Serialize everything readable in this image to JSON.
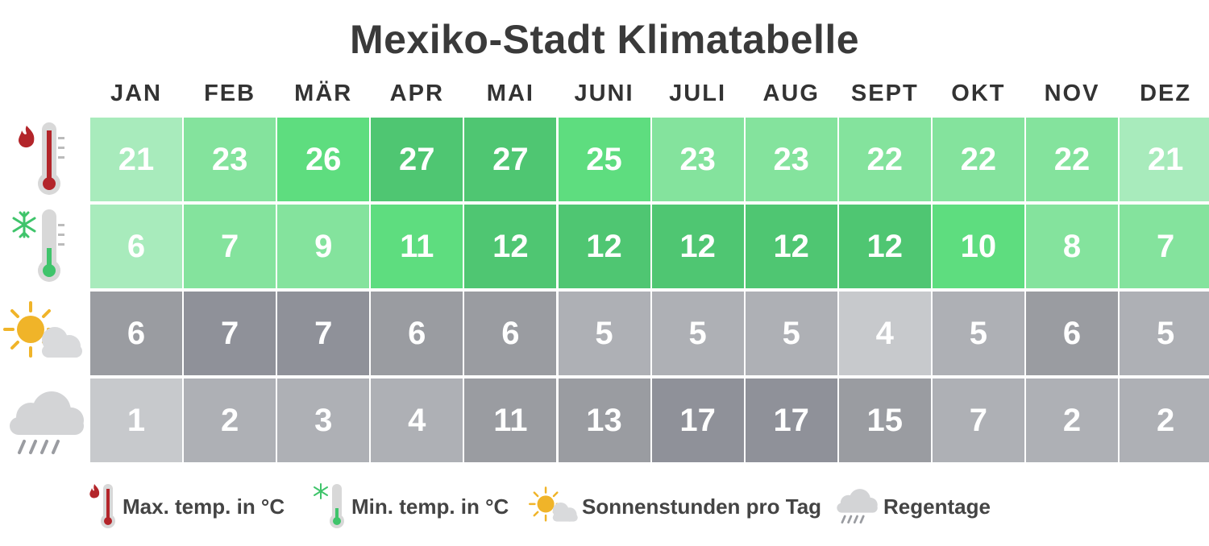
{
  "title": "Mexiko-Stadt Klimatabelle",
  "colors": {
    "green_levels": [
      "#a8ebbc",
      "#84e39d",
      "#5edd7f",
      "#4fc672"
    ],
    "gray_levels": [
      "#c7c9cc",
      "#aeb0b5",
      "#9a9ca1",
      "#8f9199"
    ]
  },
  "icons": [
    "max-temp-thermometer-icon",
    "min-temp-thermometer-icon",
    "sun-cloud-icon",
    "rain-cloud-icon"
  ],
  "chart_data": {
    "type": "table",
    "title": "Mexiko-Stadt Klimatabelle",
    "months": [
      "JAN",
      "FEB",
      "MÄR",
      "APR",
      "MAI",
      "JUNI",
      "JULI",
      "AUG",
      "SEPT",
      "OKT",
      "NOV",
      "DEZ"
    ],
    "rows": [
      {
        "name": "Max. temp. in °C",
        "values": [
          21,
          23,
          26,
          27,
          27,
          25,
          23,
          23,
          22,
          22,
          22,
          21
        ],
        "levels": [
          0,
          1,
          2,
          3,
          3,
          2,
          1,
          1,
          1,
          1,
          1,
          0
        ]
      },
      {
        "name": "Min. temp. in °C",
        "values": [
          6,
          7,
          9,
          11,
          12,
          12,
          12,
          12,
          12,
          10,
          8,
          7
        ],
        "levels": [
          0,
          1,
          1,
          2,
          3,
          3,
          3,
          3,
          3,
          2,
          1,
          1
        ]
      },
      {
        "name": "Sonnenstunden pro Tag",
        "values": [
          6,
          7,
          7,
          6,
          6,
          5,
          5,
          5,
          4,
          5,
          6,
          5
        ],
        "levels": [
          2,
          3,
          3,
          2,
          2,
          1,
          1,
          1,
          0,
          1,
          2,
          1
        ]
      },
      {
        "name": "Regentage",
        "values": [
          1,
          2,
          3,
          4,
          11,
          13,
          17,
          17,
          15,
          7,
          2,
          2
        ],
        "levels": [
          0,
          1,
          1,
          1,
          2,
          2,
          3,
          3,
          2,
          1,
          1,
          1
        ]
      }
    ]
  },
  "legend": [
    {
      "label": "Max. temp. in °C",
      "icon": "max-temp-thermometer-icon"
    },
    {
      "label": "Min. temp. in °C",
      "icon": "min-temp-thermometer-icon"
    },
    {
      "label": "Sonnenstunden pro Tag",
      "icon": "sun-cloud-icon"
    },
    {
      "label": "Regentage",
      "icon": "rain-cloud-icon"
    }
  ]
}
